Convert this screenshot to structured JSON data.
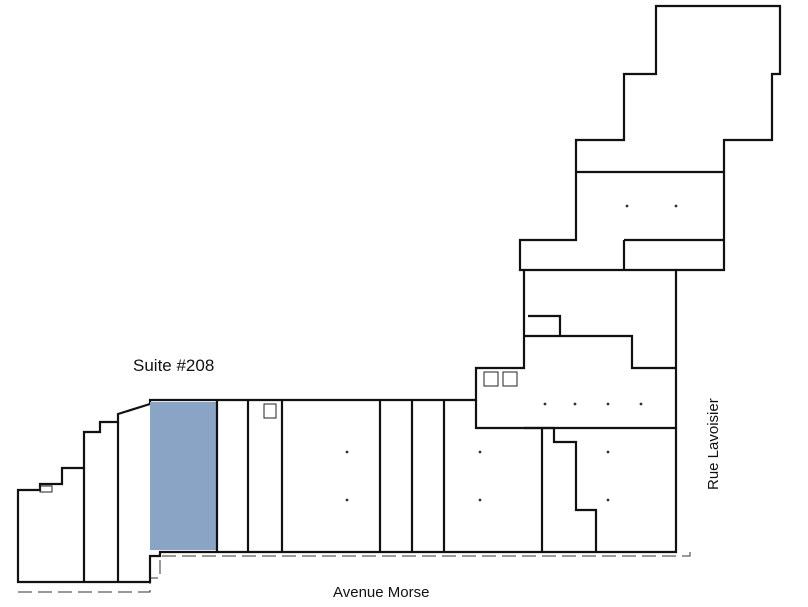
{
  "labels": {
    "suite": "Suite #208",
    "street_bottom": "Avenue Morse",
    "street_right": "Rue Lavoisier"
  },
  "colors": {
    "highlight": "#8aa4c5",
    "walls": "#111111"
  },
  "highlighted_unit": "Suite #208"
}
